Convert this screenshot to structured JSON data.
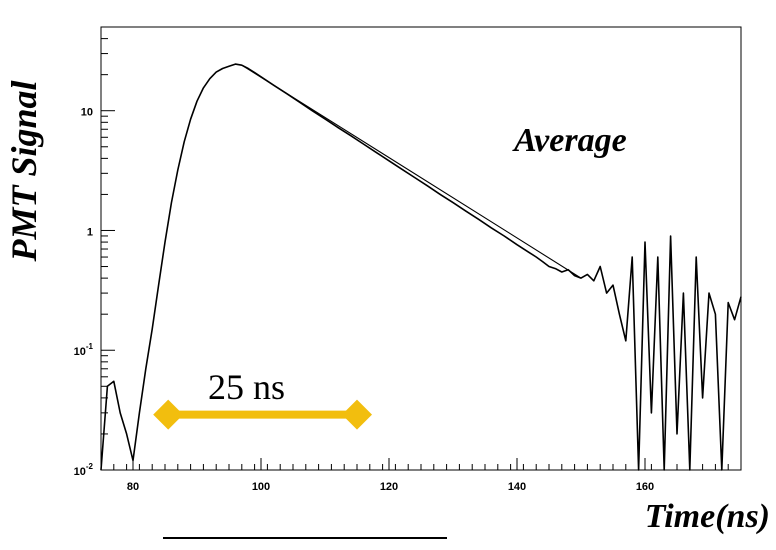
{
  "chart_data": {
    "type": "line",
    "title": "",
    "annotation": "Average",
    "xlabel": "Time(ns)",
    "ylabel": "PMT Signal",
    "yscale": "log",
    "xlim": [
      75,
      175
    ],
    "ylim": [
      0.01,
      50
    ],
    "x_ticks": [
      80,
      100,
      120,
      140,
      160
    ],
    "x_tick_labels": [
      "80",
      "100",
      "120",
      "140",
      "160"
    ],
    "y_ticks": [
      {
        "value": 10,
        "base": "10",
        "exp": ""
      },
      {
        "value": 1,
        "base": "1",
        "exp": ""
      },
      {
        "value": 0.1,
        "base": "10",
        "exp": "-1"
      },
      {
        "value": 0.01,
        "base": "10",
        "exp": "-2"
      }
    ],
    "series": [
      {
        "kind": "measured",
        "color": "#000000",
        "x": [
          75,
          76,
          77,
          78,
          79,
          80,
          81,
          82,
          83,
          84,
          85,
          86,
          87,
          88,
          89,
          90,
          91,
          92,
          93,
          94,
          95,
          96,
          97,
          98,
          99,
          100,
          102,
          104,
          106,
          108,
          110,
          112,
          114,
          116,
          118,
          120,
          122,
          124,
          126,
          128,
          130,
          132,
          134,
          136,
          138,
          140,
          142,
          143,
          144,
          145,
          146,
          147,
          148,
          149,
          150,
          151,
          152,
          153,
          154,
          155,
          156,
          157,
          158,
          159,
          160,
          161,
          162,
          163,
          164,
          165,
          166,
          167,
          168,
          169,
          170,
          171,
          172,
          173,
          174,
          175
        ],
        "y": [
          0.01,
          0.05,
          0.055,
          0.03,
          0.02,
          0.012,
          0.03,
          0.07,
          0.15,
          0.35,
          0.8,
          1.7,
          3.2,
          5.5,
          8.5,
          12,
          15.5,
          18.5,
          21,
          22.5,
          23.5,
          24.5,
          24,
          22.5,
          20.8,
          19.2,
          16.3,
          13.9,
          11.8,
          10.0,
          8.55,
          7.25,
          6.2,
          5.27,
          4.49,
          3.82,
          3.25,
          2.77,
          2.36,
          2.0,
          1.71,
          1.45,
          1.24,
          1.05,
          0.9,
          0.76,
          0.65,
          0.6,
          0.55,
          0.5,
          0.48,
          0.45,
          0.47,
          0.42,
          0.4,
          0.43,
          0.38,
          0.5,
          0.3,
          0.35,
          0.2,
          0.12,
          0.6,
          0.01,
          0.8,
          0.03,
          0.6,
          0.01,
          0.9,
          0.02,
          0.3,
          0.01,
          0.6,
          0.04,
          0.3,
          0.2,
          0.01,
          0.25,
          0.18,
          0.28
        ]
      },
      {
        "kind": "exponential fit",
        "color": "#000000",
        "x": [
          97,
          150
        ],
        "y": [
          24.0,
          0.4
        ]
      }
    ],
    "scale_bar": {
      "label": "25 ns",
      "from_x": 85.5,
      "to_x": 115,
      "at_y": 0.029,
      "color": "#F2BE0E"
    }
  }
}
